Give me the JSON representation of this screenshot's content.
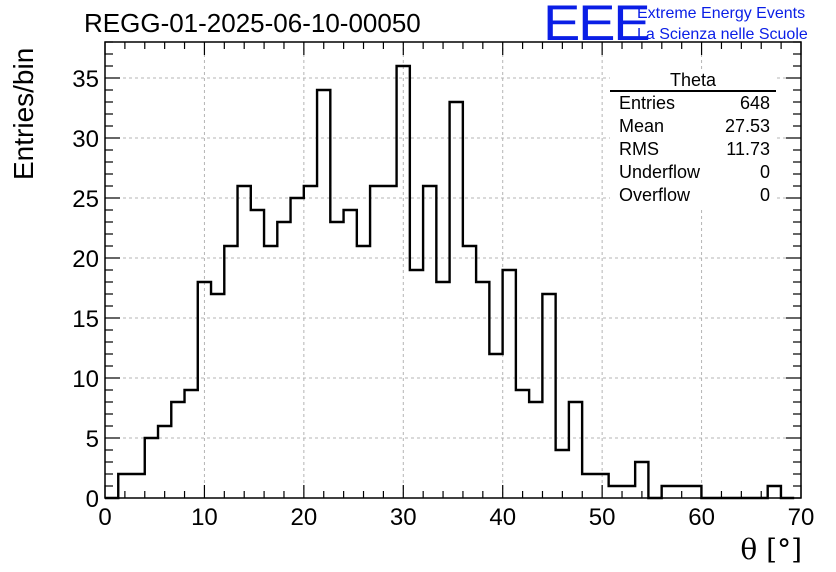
{
  "chart_data": {
    "type": "histogram",
    "title": "REGG-01-2025-06-10-00050",
    "xlabel": "θ [°]",
    "ylabel": "Entries/bin",
    "xlim": [
      0,
      70
    ],
    "ylim": [
      0,
      38
    ],
    "xticks": [
      0,
      10,
      20,
      30,
      40,
      50,
      60,
      70
    ],
    "yticks": [
      0,
      5,
      10,
      15,
      20,
      25,
      30,
      35
    ],
    "grid": true,
    "bin_edges_start": 0,
    "bin_width": 1.333,
    "values": [
      0,
      2,
      2,
      5,
      6,
      8,
      9,
      18,
      17,
      21,
      26,
      24,
      21,
      23,
      25,
      26,
      34,
      23,
      24,
      21,
      26,
      26,
      36,
      19,
      26,
      18,
      33,
      21,
      18,
      12,
      19,
      9,
      8,
      17,
      4,
      8,
      2,
      2,
      1,
      1,
      3,
      0,
      1,
      1,
      1,
      0,
      0,
      0,
      0,
      0,
      1,
      0
    ],
    "stats_box": {
      "title": "Theta",
      "rows": [
        {
          "label": "Entries",
          "value": "648"
        },
        {
          "label": "Mean",
          "value": "27.53"
        },
        {
          "label": "RMS",
          "value": "11.73"
        },
        {
          "label": "Underflow",
          "value": "0"
        },
        {
          "label": "Overflow",
          "value": "0"
        }
      ]
    }
  },
  "logo": {
    "mark": "EEE",
    "line1": "Extreme Energy Events",
    "line2": "La Scienza nelle Scuole"
  },
  "colors": {
    "logo": "#0a1ee6",
    "line": "#000000",
    "grid": "#b4b4b4"
  }
}
